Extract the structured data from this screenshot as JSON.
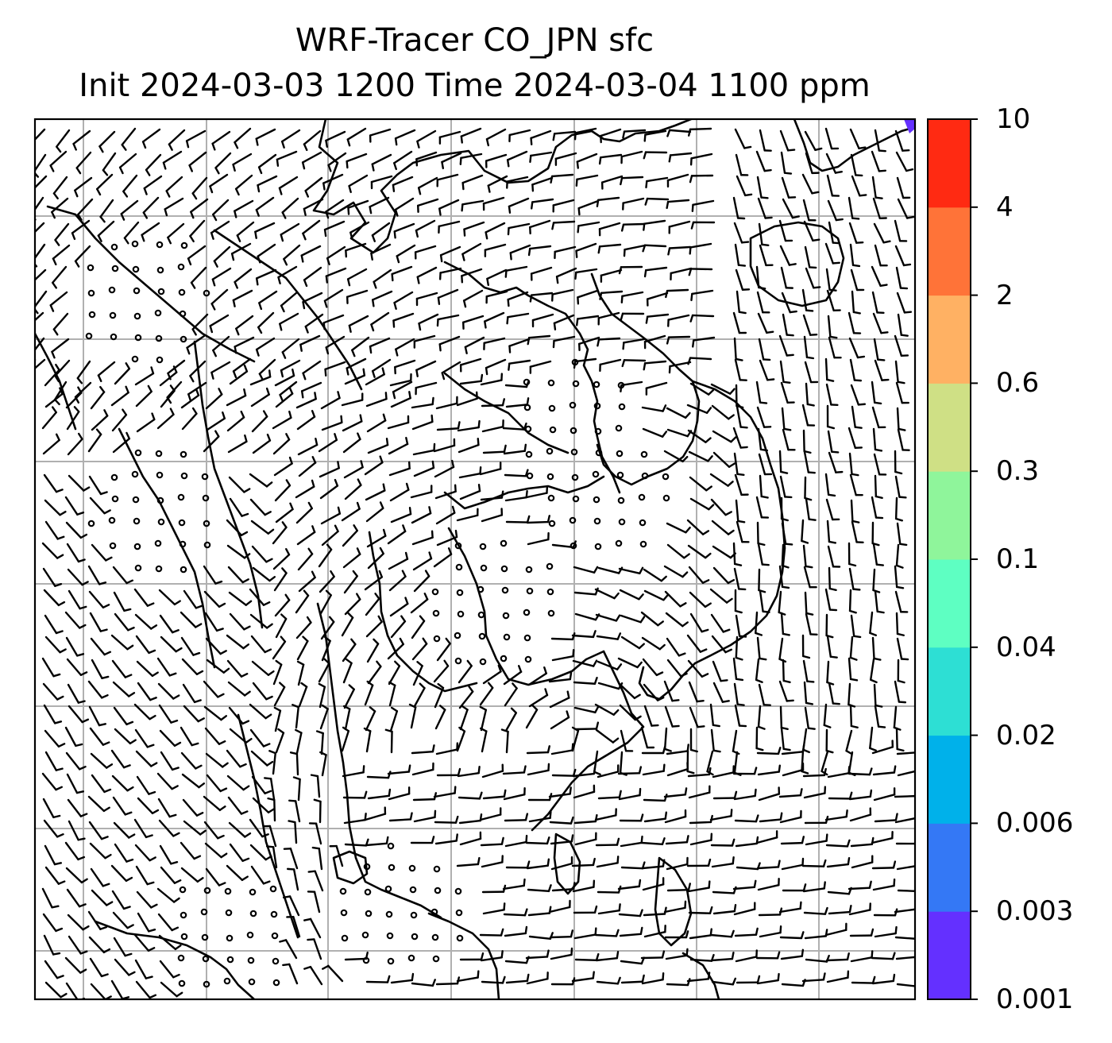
{
  "title": {
    "line1": "WRF-Tracer CO_JPN sfc",
    "line2": "Init 2024-03-03 1200 Time 2024-03-04 1100 ppm"
  },
  "colorbar": {
    "levels": [
      "0.001",
      "0.003",
      "0.006",
      "0.02",
      "0.04",
      "0.1",
      "0.3",
      "0.6",
      "2",
      "4",
      "10"
    ],
    "colors": [
      "#6430ff",
      "#3478f5",
      "#00b1ea",
      "#2ddfd4",
      "#5effc2",
      "#8ff59b",
      "#cfe085",
      "#ffb163",
      "#ff7338",
      "#ff2a12"
    ]
  },
  "map": {
    "grid_color": "#b0b0b0",
    "coast_color": "#000000",
    "barb_color": "#000000",
    "tracer_max_marker_color": "#6430ff"
  }
}
